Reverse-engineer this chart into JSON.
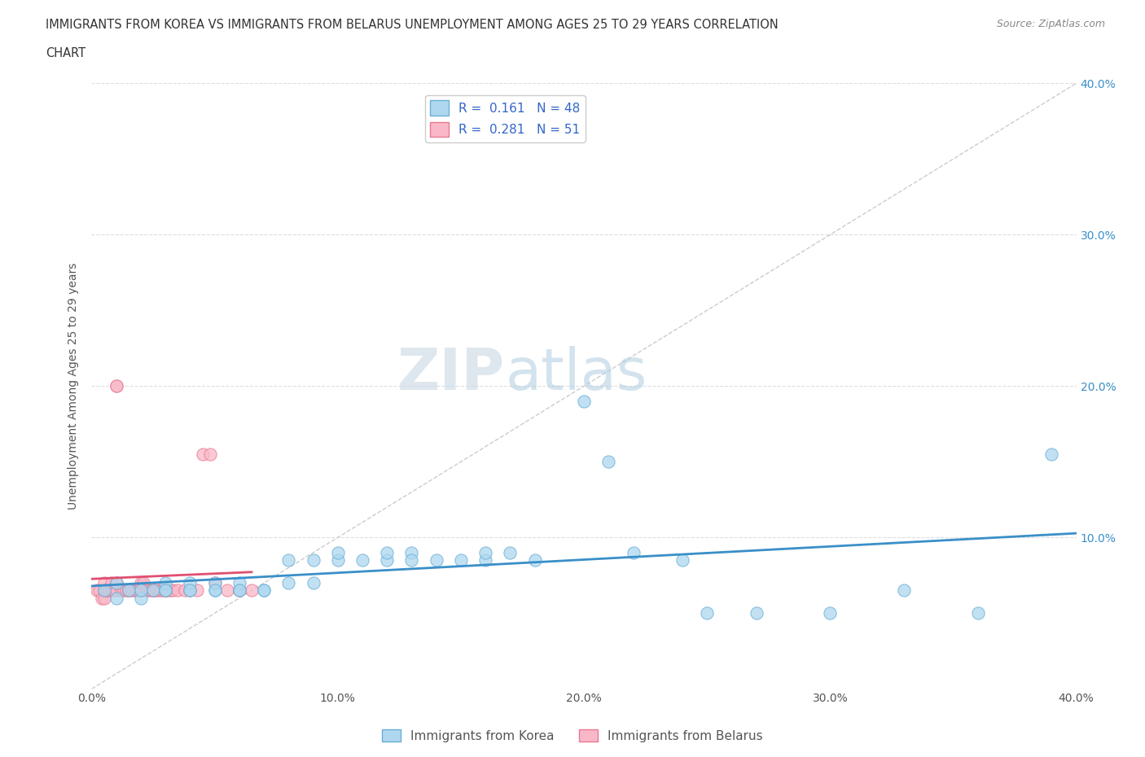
{
  "title_line1": "IMMIGRANTS FROM KOREA VS IMMIGRANTS FROM BELARUS UNEMPLOYMENT AMONG AGES 25 TO 29 YEARS CORRELATION",
  "title_line2": "CHART",
  "source_text": "Source: ZipAtlas.com",
  "ylabel": "Unemployment Among Ages 25 to 29 years",
  "xlim": [
    0.0,
    0.4
  ],
  "ylim": [
    0.0,
    0.4
  ],
  "korea_R": 0.161,
  "korea_N": 48,
  "belarus_R": 0.281,
  "belarus_N": 51,
  "korea_color": "#ADD8F0",
  "belarus_color": "#F9B8C8",
  "korea_edge_color": "#6BAED6",
  "belarus_edge_color": "#E87A92",
  "korea_line_color": "#3A8FC8",
  "belarus_line_color": "#E05070",
  "watermark_zip": "ZIP",
  "watermark_atlas": "atlas",
  "korea_scatter_x": [
    0.005,
    0.01,
    0.01,
    0.015,
    0.02,
    0.02,
    0.025,
    0.03,
    0.03,
    0.03,
    0.04,
    0.04,
    0.04,
    0.05,
    0.05,
    0.05,
    0.06,
    0.06,
    0.06,
    0.07,
    0.07,
    0.08,
    0.08,
    0.09,
    0.09,
    0.1,
    0.1,
    0.11,
    0.12,
    0.12,
    0.13,
    0.13,
    0.14,
    0.15,
    0.16,
    0.16,
    0.17,
    0.18,
    0.2,
    0.21,
    0.22,
    0.24,
    0.25,
    0.27,
    0.3,
    0.33,
    0.36,
    0.39
  ],
  "korea_scatter_y": [
    0.065,
    0.06,
    0.07,
    0.065,
    0.06,
    0.065,
    0.065,
    0.065,
    0.07,
    0.065,
    0.065,
    0.07,
    0.065,
    0.065,
    0.07,
    0.065,
    0.065,
    0.07,
    0.065,
    0.065,
    0.065,
    0.07,
    0.085,
    0.085,
    0.07,
    0.085,
    0.09,
    0.085,
    0.085,
    0.09,
    0.09,
    0.085,
    0.085,
    0.085,
    0.085,
    0.09,
    0.09,
    0.085,
    0.19,
    0.15,
    0.09,
    0.085,
    0.05,
    0.05,
    0.05,
    0.065,
    0.05,
    0.155
  ],
  "belarus_scatter_x": [
    0.002,
    0.003,
    0.004,
    0.005,
    0.005,
    0.005,
    0.006,
    0.007,
    0.008,
    0.008,
    0.009,
    0.01,
    0.01,
    0.01,
    0.01,
    0.012,
    0.013,
    0.014,
    0.015,
    0.015,
    0.016,
    0.017,
    0.018,
    0.019,
    0.02,
    0.02,
    0.021,
    0.022,
    0.023,
    0.024,
    0.025,
    0.025,
    0.026,
    0.027,
    0.028,
    0.029,
    0.03,
    0.03,
    0.031,
    0.032,
    0.033,
    0.035,
    0.038,
    0.04,
    0.043,
    0.045,
    0.048,
    0.05,
    0.055,
    0.06,
    0.065
  ],
  "belarus_scatter_y": [
    0.065,
    0.065,
    0.06,
    0.06,
    0.065,
    0.07,
    0.065,
    0.065,
    0.065,
    0.07,
    0.065,
    0.065,
    0.07,
    0.2,
    0.2,
    0.065,
    0.065,
    0.065,
    0.065,
    0.065,
    0.065,
    0.065,
    0.065,
    0.065,
    0.065,
    0.07,
    0.07,
    0.065,
    0.065,
    0.065,
    0.065,
    0.065,
    0.065,
    0.065,
    0.065,
    0.065,
    0.065,
    0.065,
    0.065,
    0.065,
    0.065,
    0.065,
    0.065,
    0.065,
    0.065,
    0.155,
    0.155,
    0.07,
    0.065,
    0.065,
    0.065
  ]
}
